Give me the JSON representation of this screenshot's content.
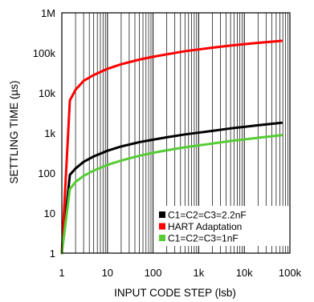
{
  "chart_data": {
    "type": "line",
    "xlabel": "INPUT CODE STEP (lsb)",
    "ylabel": "SETTLING TIME (µs)",
    "x_scale": "log",
    "y_scale": "log",
    "xlim": [
      1,
      100000
    ],
    "ylim": [
      1,
      1000000
    ],
    "x_ticks": [
      "1",
      "10",
      "100",
      "1k",
      "10k",
      "100k"
    ],
    "y_ticks": [
      "1",
      "10",
      "100",
      "1k",
      "10k",
      "100k",
      "1M"
    ],
    "grid": "vertical log grid lines, no horizontal grid",
    "legend_position": "bottom-right",
    "series": [
      {
        "name": "C1=C2=C3=2.2nF",
        "color": "#000000",
        "x": [
          1,
          1.5,
          2,
          3,
          5,
          10,
          20,
          50,
          100,
          200,
          500,
          1000,
          2000,
          5000,
          10000,
          20000,
          65535
        ],
        "y": [
          1,
          90,
          130,
          190,
          260,
          360,
          460,
          590,
          680,
          780,
          920,
          1020,
          1130,
          1300,
          1420,
          1560,
          1800
        ]
      },
      {
        "name": "HART Adaptation",
        "color": "#ff0000",
        "x": [
          1,
          1.5,
          2,
          3,
          5,
          10,
          20,
          50,
          100,
          200,
          500,
          1000,
          2000,
          5000,
          10000,
          20000,
          65535
        ],
        "y": [
          1,
          6500,
          12000,
          20000,
          28000,
          40000,
          52000,
          68000,
          80000,
          92000,
          110000,
          122000,
          135000,
          152000,
          165000,
          178000,
          200000
        ]
      },
      {
        "name": "C1=C2=C3=1nF",
        "color": "#55cc33",
        "x": [
          1,
          1.5,
          2,
          3,
          5,
          10,
          20,
          50,
          100,
          200,
          500,
          1000,
          2000,
          5000,
          10000,
          20000,
          65535
        ],
        "y": [
          1,
          40,
          60,
          85,
          115,
          160,
          205,
          270,
          320,
          370,
          440,
          490,
          545,
          630,
          690,
          760,
          880
        ]
      }
    ]
  }
}
